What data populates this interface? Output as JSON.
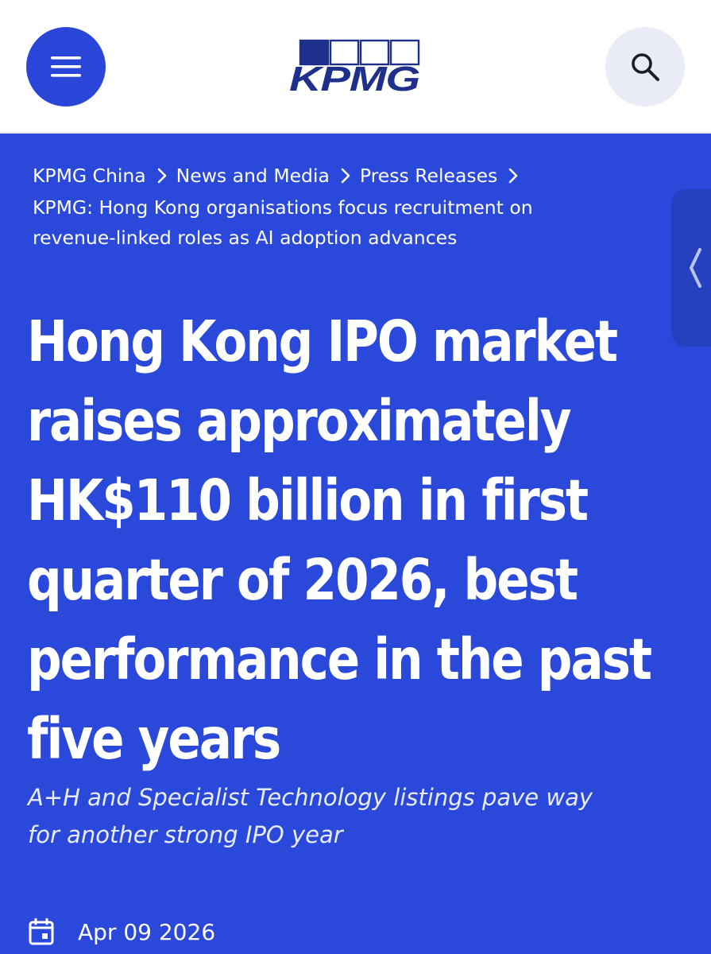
{
  "header": {
    "menu_icon": "hamburger-menu-icon",
    "logo_text": "KPMG",
    "search_icon": "search-icon"
  },
  "breadcrumb": {
    "items": [
      "KPMG China",
      "News and Media",
      "Press Releases"
    ],
    "current_line1": "KPMG: Hong Kong organisations focus recruitment on",
    "current_line2": "revenue-linked roles as AI adoption advances"
  },
  "side_tab": {
    "icon": "chevron-left-icon"
  },
  "article": {
    "title_lines": [
      "Hong Kong IPO market",
      "raises approximately",
      "HK$110 billion in first",
      "quarter of 2026, best",
      "performance in the past",
      "five years"
    ],
    "subtitle_line1": "A+H and Specialist Technology listings pave way",
    "subtitle_line2": "for another strong IPO year",
    "date_icon": "calendar-icon",
    "date": "Apr 09 2026"
  },
  "colors": {
    "brand_blue": "#2a46d8",
    "hero_background": "#2a48d9",
    "logo_navy": "#1e2f8c"
  }
}
